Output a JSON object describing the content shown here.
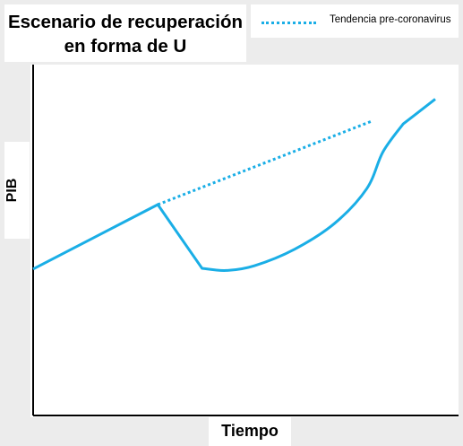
{
  "chart_data": {
    "type": "line",
    "title": "Escenario de recuperación en forma de U",
    "title_lines": [
      "Escenario de recuperación",
      "en forma de U"
    ],
    "xlabel": "Tiempo",
    "ylabel": "PIB",
    "axis_ticks": false,
    "grid": false,
    "legend_position": "top-right",
    "xlim": [
      0,
      100
    ],
    "ylim": [
      0,
      100
    ],
    "series": [
      {
        "name": "",
        "style": "solid",
        "color": "#1aaee6",
        "x": [
          0,
          31,
          42,
          48,
          55,
          65,
          75,
          83,
          87,
          92,
          100
        ],
        "y": [
          40,
          57.6,
          40.2,
          39.6,
          40.9,
          45.4,
          52.5,
          62,
          72,
          79.6,
          86.4
        ]
      },
      {
        "name": "Tendencia pre-coronavirus",
        "style": "dotted",
        "color": "#1aaee6",
        "x": [
          31,
          84
        ],
        "y": [
          57.6,
          80.3
        ]
      }
    ]
  }
}
